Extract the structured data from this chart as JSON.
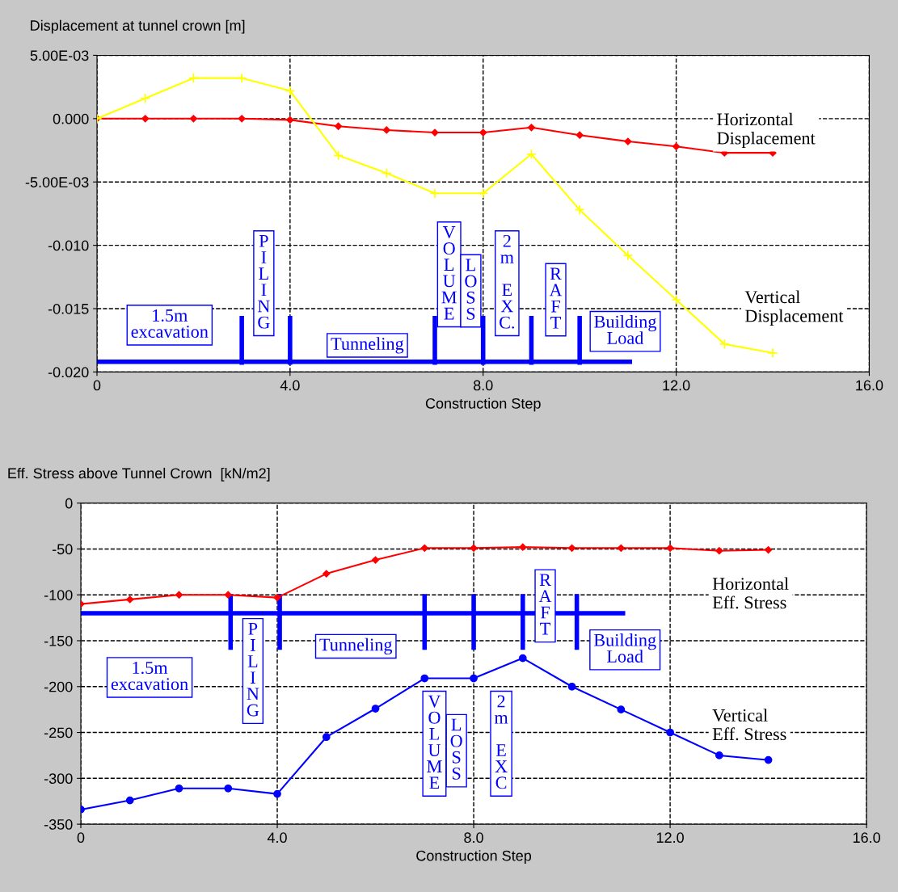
{
  "chart_data": [
    {
      "type": "line",
      "title": "Displacement at tunnel crown [m]",
      "xlabel": "Construction Step",
      "x": [
        0,
        1,
        2,
        3,
        4,
        5,
        6,
        7,
        8,
        9,
        10,
        11,
        12,
        13,
        14
      ],
      "series": [
        {
          "name": "Horizontal\nDisplacement",
          "color": "#ff0000",
          "marker": "diamond",
          "values": [
            0,
            0,
            0,
            0,
            -0.0001,
            -0.0006,
            -0.0009,
            -0.0011,
            -0.0011,
            -0.0007,
            -0.0013,
            -0.0018,
            -0.0022,
            -0.0027,
            -0.0027
          ]
        },
        {
          "name": "Vertical\nDisplacement",
          "color": "#ffff00",
          "marker": "cross",
          "values": [
            0,
            0.0016,
            0.0032,
            0.0032,
            0.0022,
            -0.0029,
            -0.0043,
            -0.0059,
            -0.0059,
            -0.0028,
            -0.0072,
            -0.0108,
            -0.0143,
            -0.0178,
            -0.0185
          ]
        }
      ],
      "xlim": [
        0,
        16
      ],
      "xticks": [
        0,
        {
          "value": 4,
          "label": "4.0"
        },
        {
          "value": 8,
          "label": "8.0"
        },
        {
          "value": 12,
          "label": "12.0"
        },
        {
          "value": 16,
          "label": "16.0"
        }
      ],
      "ylim": [
        -0.02,
        0.005
      ],
      "yticks": [
        {
          "value": 0.005,
          "label": "5.00E-03"
        },
        {
          "value": 0,
          "label": "0.000"
        },
        {
          "value": -0.005,
          "label": "-5.00E-03"
        },
        {
          "value": -0.01,
          "label": "-0.010"
        },
        {
          "value": -0.015,
          "label": "-0.015"
        },
        {
          "value": -0.02,
          "label": "-0.020"
        }
      ],
      "grid": true,
      "line_style": "solid",
      "ref_lines": [
        {
          "axis": "y",
          "value": -0.0192,
          "color": "#0000ff"
        },
        {
          "axis": "x",
          "value": 3,
          "color": "#0000ff"
        },
        {
          "axis": "x",
          "value": 4,
          "color": "#0000ff"
        },
        {
          "axis": "x",
          "value": 7,
          "color": "#0000ff"
        },
        {
          "axis": "x",
          "value": 8,
          "color": "#0000ff"
        },
        {
          "axis": "x",
          "value": 9,
          "color": "#0000ff"
        },
        {
          "axis": "x",
          "value": 10,
          "color": "#0000ff"
        }
      ],
      "annotations": [
        "1.5m\nexcavation",
        "P\nI\nL\nI\nN\nG",
        "Tunneling",
        "V\nO\nL\nU\nM\nE",
        "L\nO\nS\nS",
        "2\nm\n\nE\nX\nC.",
        "R\nA\nF\nT",
        "Building\nLoad"
      ]
    },
    {
      "type": "line",
      "title": "Eff. Stress above Tunnel Crown  [kN/m2]",
      "xlabel": "Construction Step",
      "x": [
        0,
        1,
        2,
        3,
        4,
        5,
        6,
        7,
        8,
        9,
        10,
        11,
        12,
        13,
        14
      ],
      "series": [
        {
          "name": "Horizontal\nEff. Stress",
          "color": "#ff0000",
          "marker": "diamond",
          "values": [
            -110,
            -105,
            -100,
            -100,
            -103,
            -77,
            -62,
            -49,
            -49,
            -48,
            -49,
            -49,
            -49,
            -52,
            -51
          ]
        },
        {
          "name": "Vertical\nEff. Stress",
          "color": "#0000ff",
          "marker": "circle",
          "values": [
            -334,
            -324,
            -311,
            -311,
            -317,
            -255,
            -224,
            -191,
            -191,
            -169,
            -200,
            -225,
            -250,
            -275,
            -280
          ]
        }
      ],
      "xlim": [
        0,
        16
      ],
      "xticks": [
        0,
        {
          "value": 4,
          "label": "4.0"
        },
        {
          "value": 8,
          "label": "8.0"
        },
        {
          "value": 12,
          "label": "12.0"
        },
        {
          "value": 16,
          "label": "16.0"
        }
      ],
      "ylim": [
        -350,
        0
      ],
      "yticks": [
        0,
        -50,
        -100,
        -150,
        -200,
        -250,
        -300,
        -350
      ],
      "grid": true,
      "line_style": "solid",
      "ref_lines": [
        {
          "axis": "y",
          "value": -120,
          "color": "#0000ff"
        },
        {
          "axis": "x",
          "value": 3.05,
          "color": "#0000ff"
        },
        {
          "axis": "x",
          "value": 4.05,
          "color": "#0000ff"
        },
        {
          "axis": "x",
          "value": 7,
          "color": "#0000ff"
        },
        {
          "axis": "x",
          "value": 8,
          "color": "#0000ff"
        },
        {
          "axis": "x",
          "value": 9,
          "color": "#0000ff"
        },
        {
          "axis": "x",
          "value": 10.1,
          "color": "#0000ff"
        }
      ],
      "annotations": [
        "1.5m\nexcavation",
        "P\nI\nL\nI\nN\nG",
        "Tunneling",
        "V\nO\nL\nU\nM\nE",
        "L\nO\nS\nS",
        "2\nm\n\nE\nX\nC",
        "R\nA\nF\nT",
        "Building\nLoad"
      ]
    }
  ]
}
